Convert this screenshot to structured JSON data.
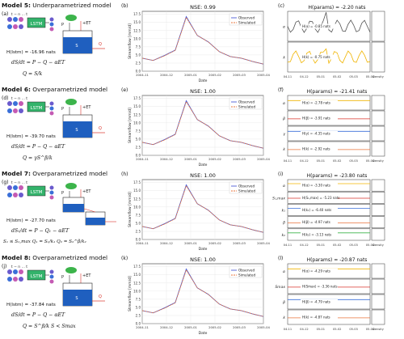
{
  "rows": [
    {
      "title_bold": "Model 5:",
      "title_rest": " Underparametrized model",
      "left_label": "(a)",
      "mid_label": "(b)",
      "right_label": "(c)",
      "h_lstm": "H(lstm) = -16.96 nats",
      "eq1": "dS/dt = P − Q − αET",
      "eq2": "Q = S/k",
      "nse": "NSE: 0.99",
      "params_title": "H(params) = -2.20 nats",
      "param_lines": [
        "H(α) = -0.85 nats",
        "H(k) = -0.75 nats"
      ],
      "param_axes": [
        "α",
        "k"
      ]
    },
    {
      "title_bold": "Model 6:",
      "title_rest": " Overparametrized model",
      "left_label": "(d)",
      "mid_label": "(e)",
      "right_label": "(f)",
      "h_lstm": "H(lstm) = -39.70 nats",
      "eq1": "dS/dt = P − Q − αET",
      "eq2": "Q = γS^β/k",
      "nse": "NSE: 1.00",
      "params_title": "H(params) = -21.41 nats",
      "param_lines": [
        "H(α) = -2.78 nats",
        "H(β) = -3.91 nats",
        "H(γ) = -4.35 nats",
        "H(k) = -2.92 nats"
      ],
      "param_axes": [
        "α",
        "β",
        "γ",
        "k"
      ]
    },
    {
      "title_bold": "Model 7:",
      "title_rest": " Overparametrized model",
      "left_label": "(g)",
      "mid_label": "(h)",
      "right_label": "(i)",
      "h_lstm": "H(lstm) = -27.70 nats",
      "eq1": "dS₁/dt = P − Q₁ − αET",
      "eq2": "S₁ ≤ S₁,max   Q₁ = S₁/k₁   Q₂ = S₂^β/k₂",
      "nse": "NSE: 1.00",
      "params_title": "H(params) = -23.80 nats",
      "param_lines": [
        "H(α) = -3.30 nats",
        "H(S₁,max) = -5.23 nats",
        "H(k₁) = -6.40 nats",
        "H(β) = -4.97 nats",
        "H(k₂) = -3.13 nats"
      ],
      "param_axes": [
        "α",
        "S₁,max",
        "k₁",
        "β",
        "k₂"
      ]
    },
    {
      "title_bold": "Model 8:",
      "title_rest": " Overparametrized model",
      "left_label": "(j)",
      "mid_label": "(k)",
      "right_label": "(l)",
      "h_lstm": "H(lstm) = -37.84 nats",
      "eq1": "dS/dt = P − Q − αET",
      "eq2": "Q = S^β/k   S < Smax",
      "nse": "NSE: 1.00",
      "params_title": "H(params) = -20.87 nats",
      "param_lines": [
        "H(α) = -4.29 nats",
        "H(Smax) = -3.36 nats",
        "H(β) = -4.79 nats",
        "H(k) = -4.87 nats"
      ],
      "param_axes": [
        "α",
        "Smax",
        "β",
        "k"
      ]
    }
  ],
  "shared": {
    "lstm_label": "LSTM",
    "time_label": "t − n ... t",
    "state_label": "S",
    "p_label": "P",
    "et_label": "+ET",
    "q_label": "Q",
    "legend_obs": "Observed",
    "legend_sim": "Simulated",
    "xlabel": "Date",
    "ylabel": "Streamflow [mm/d]",
    "density_label": "Density",
    "yticks": [
      "0.0",
      "2.5",
      "5.0",
      "7.5",
      "10.0",
      "12.5",
      "15.0",
      "17.5"
    ],
    "xticks": [
      "2004-11",
      "2004-12",
      "2005-01",
      "2005-02",
      "2005-03",
      "2005-04"
    ],
    "right_xticks": [
      "04-11",
      "04-12",
      "05-01",
      "05-02",
      "05-03",
      "05-04"
    ]
  },
  "colors": {
    "observed": "#4a5bd4",
    "simulated": "#e8743b",
    "water": "#1f5fbf",
    "lstm_box": "#33b36b"
  },
  "chart_data": {
    "type": "line",
    "title": "NSE",
    "xlabel": "Date",
    "ylabel": "Streamflow [mm/d]",
    "ylim": [
      0,
      17.5
    ],
    "x": [
      "2004-11",
      "2004-12",
      "2004-12-15",
      "2005-01",
      "2005-01-10",
      "2005-01-15",
      "2005-01-20",
      "2005-02",
      "2005-02-15",
      "2005-03",
      "2005-03-15",
      "2005-04"
    ],
    "series": [
      {
        "name": "Observed",
        "values": [
          4.0,
          3.3,
          4.8,
          6.5,
          16.8,
          11.0,
          9.0,
          6.0,
          4.5,
          4.0,
          3.0,
          2.2
        ]
      },
      {
        "name": "Simulated",
        "values": [
          4.0,
          3.3,
          4.7,
          6.4,
          16.5,
          11.0,
          9.0,
          6.0,
          4.5,
          4.0,
          3.0,
          2.2
        ]
      }
    ]
  }
}
